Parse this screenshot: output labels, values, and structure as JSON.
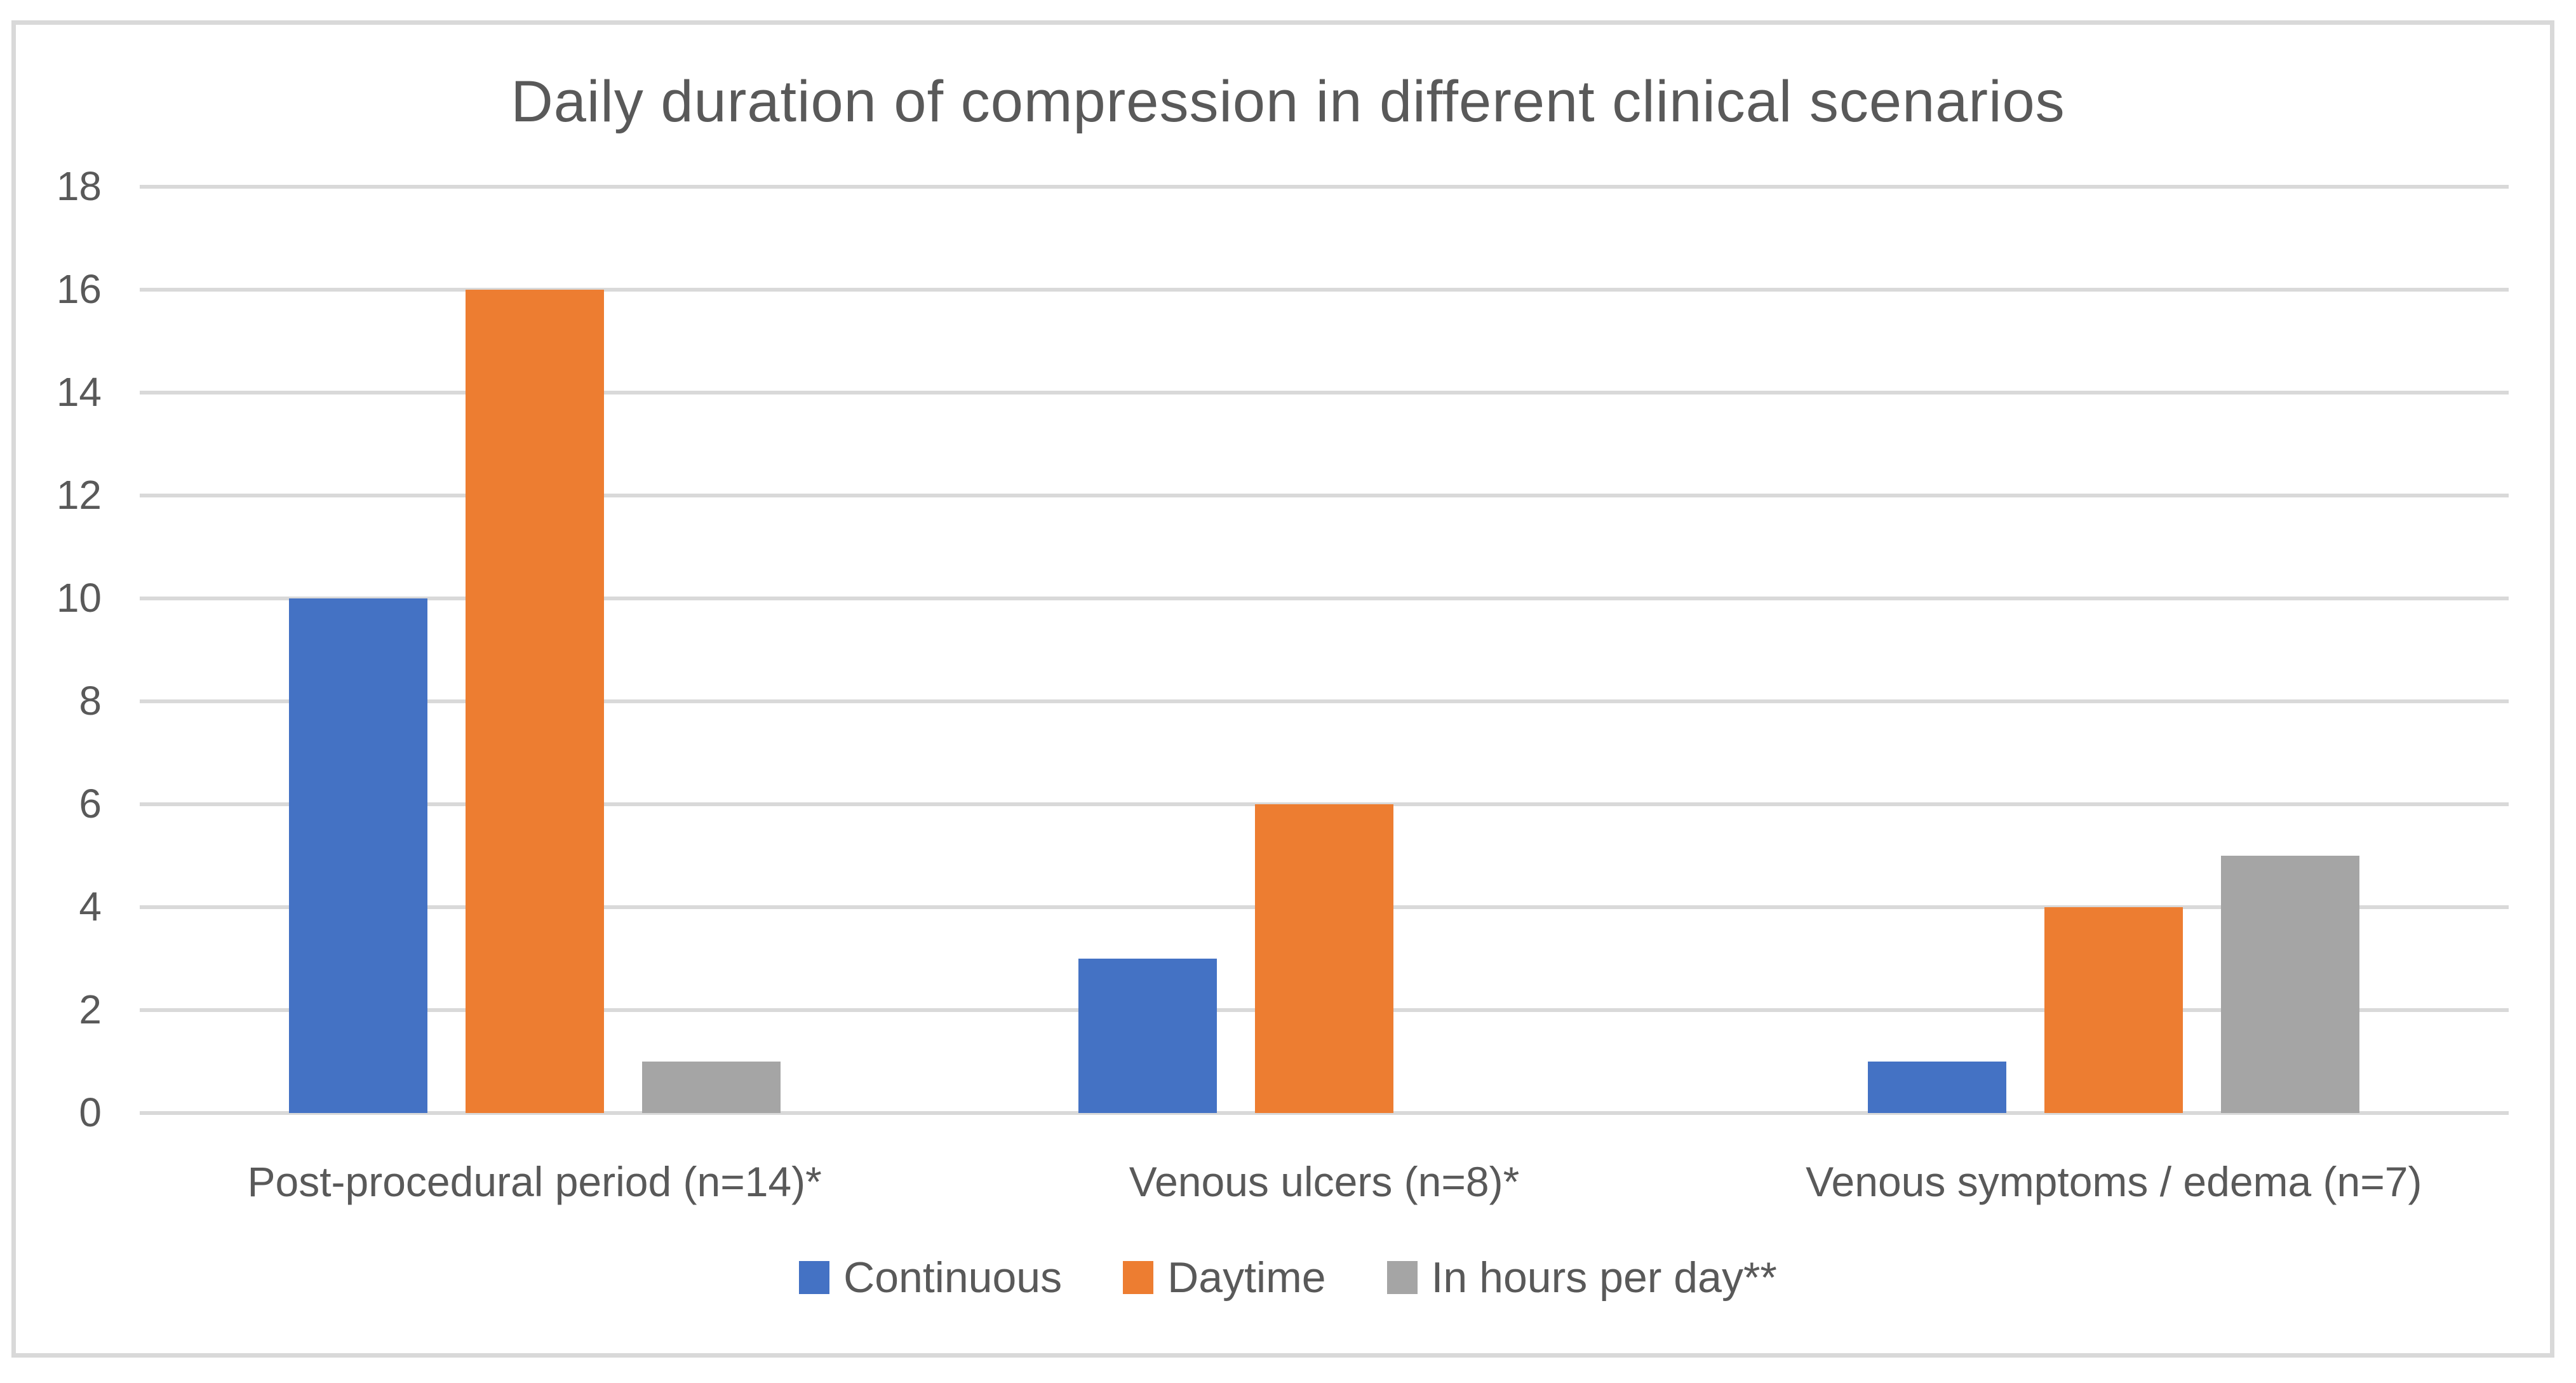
{
  "figure": {
    "border_color": "#D9D9D9",
    "background_color": "#FFFFFF",
    "text_color": "#595959"
  },
  "chart_data": {
    "type": "bar",
    "title": "Daily duration of compression in different clinical scenarios",
    "categories": [
      "Post-procedural period (n=14)*",
      "Venous ulcers (n=8)*",
      "Venous symptoms / edema (n=7)"
    ],
    "series": [
      {
        "name": "Continuous",
        "color": "#4472C4",
        "values": [
          10,
          3,
          1
        ]
      },
      {
        "name": "Daytime",
        "color": "#ED7D31",
        "values": [
          16,
          6,
          4
        ]
      },
      {
        "name": "In hours per day**",
        "color": "#A5A5A5",
        "values": [
          1,
          0,
          5
        ]
      }
    ],
    "xlabel": "",
    "ylabel": "",
    "ylim": [
      0,
      18
    ],
    "yticks": [
      0,
      2,
      4,
      6,
      8,
      10,
      12,
      14,
      16,
      18
    ],
    "grid": true,
    "gridline_color": "#D9D9D9",
    "legend_position": "bottom"
  }
}
